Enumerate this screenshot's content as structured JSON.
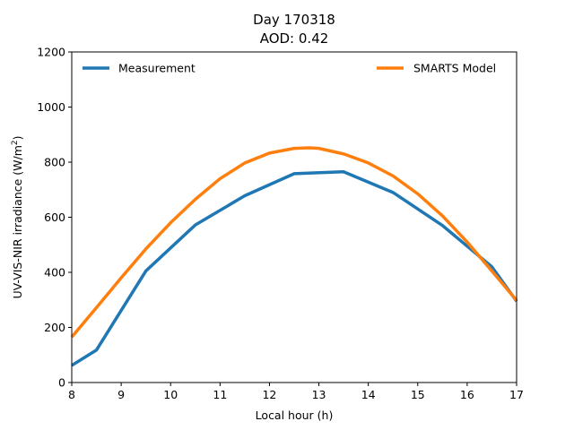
{
  "chart_data": {
    "type": "line",
    "title_line1": "Day 170318",
    "title_line2": "AOD: 0.42",
    "xlabel": "Local hour (h)",
    "ylabel_prefix": "UV-VIS-NIR irradiance (W/m",
    "ylabel_sup": "2",
    "ylabel_suffix": ")",
    "xlim": [
      8,
      17
    ],
    "ylim": [
      0,
      1200
    ],
    "xticks": [
      8,
      9,
      10,
      11,
      12,
      13,
      14,
      15,
      16,
      17
    ],
    "yticks": [
      0,
      200,
      400,
      600,
      800,
      1000,
      1200
    ],
    "grid": false,
    "series": [
      {
        "name": "Measurement",
        "color": "#1f77b4",
        "legend": "top-left",
        "x": [
          8,
          8.5,
          9.5,
          10.5,
          11.5,
          12.5,
          13.5,
          14.5,
          15.5,
          16.5,
          17
        ],
        "y": [
          62,
          118,
          405,
          572,
          678,
          758,
          765,
          690,
          570,
          420,
          295
        ]
      },
      {
        "name": "SMARTS Model",
        "color": "#ff7f0e",
        "legend": "top-right",
        "x": [
          8,
          8.5,
          9,
          9.5,
          10,
          10.5,
          11,
          11.5,
          12,
          12.5,
          12.8,
          13,
          13.5,
          14,
          14.5,
          15,
          15.5,
          16,
          16.5,
          17
        ],
        "y": [
          165,
          272,
          380,
          485,
          580,
          665,
          740,
          797,
          833,
          850,
          852,
          850,
          830,
          797,
          750,
          685,
          605,
          510,
          405,
          298
        ]
      }
    ]
  }
}
